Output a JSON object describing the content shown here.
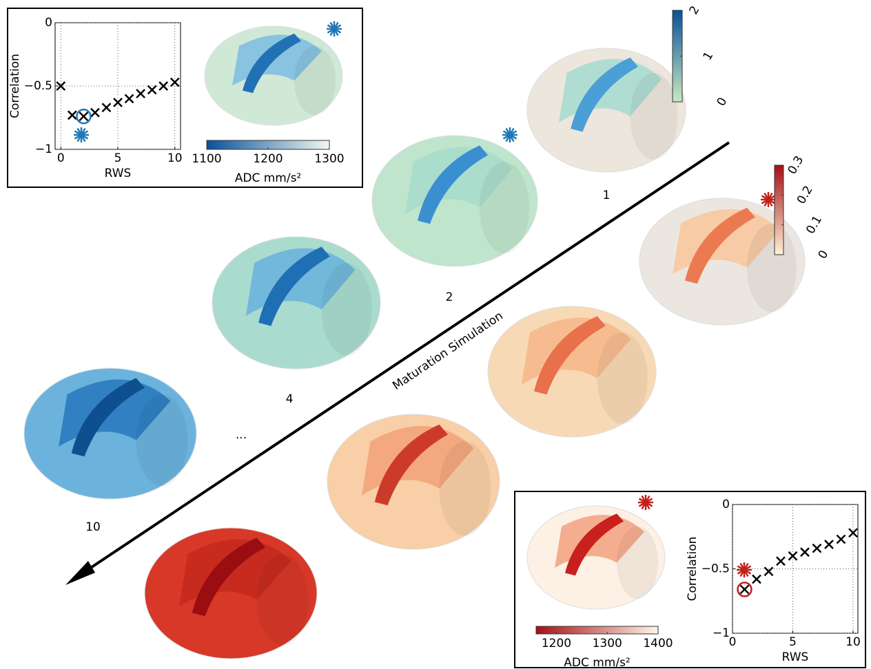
{
  "chart_data": [
    {
      "type": "scatter",
      "xlabel": "RWS",
      "ylabel": "Correlation",
      "marker": "x",
      "color": "#000000",
      "grid": true,
      "x": [
        0,
        1,
        2,
        3,
        4,
        5,
        6,
        7,
        8,
        9,
        10
      ],
      "values": [
        -0.5,
        -0.73,
        -0.74,
        -0.71,
        -0.67,
        -0.63,
        -0.6,
        -0.56,
        -0.53,
        -0.5,
        -0.47
      ],
      "xlim": [
        -0.5,
        10.5
      ],
      "ylim": [
        -1,
        0
      ],
      "xticks": [
        0,
        5,
        10
      ],
      "yticks": [
        {
          "value": 0,
          "label": "0"
        },
        {
          "value": -0.5,
          "label": "−0.5"
        },
        {
          "value": -1,
          "label": "−1"
        }
      ],
      "highlight": {
        "x": 2,
        "y": -0.74,
        "color": "#1f77b4"
      }
    },
    {
      "type": "scatter",
      "xlabel": "RWS",
      "ylabel": "Correlation",
      "marker": "x",
      "color": "#000000",
      "grid": true,
      "x": [
        1,
        2,
        3,
        4,
        5,
        6,
        7,
        8,
        9,
        10
      ],
      "values": [
        -0.66,
        -0.58,
        -0.52,
        -0.44,
        -0.4,
        -0.37,
        -0.34,
        -0.31,
        -0.27,
        -0.22
      ],
      "xlim": [
        0,
        10.4
      ],
      "ylim": [
        -1,
        0
      ],
      "xticks": [
        0,
        5,
        10
      ],
      "yticks": [
        {
          "value": 0,
          "label": "0"
        },
        {
          "value": -0.5,
          "label": "−0.5"
        },
        {
          "value": -1,
          "label": "−1"
        }
      ],
      "highlight": {
        "x": 1,
        "y": -0.66,
        "color": "#c0201a"
      }
    }
  ],
  "figure": {
    "colorbars": [
      {
        "label": "ADC mm/s²",
        "lim": [
          1100,
          1300
        ],
        "ticks": [
          1100,
          1200,
          1300
        ],
        "colors": [
          "#08519c",
          "#f2f7f0"
        ]
      },
      {
        "label": "ADC mm/s²",
        "lim": [
          1160,
          1400
        ],
        "ticks": [
          1200,
          1300,
          1400
        ],
        "colors": [
          "#a50f15",
          "#fff6e8"
        ]
      },
      {
        "lim": [
          0,
          2
        ],
        "ticks": [
          0,
          1,
          2
        ],
        "colors": [
          "#c7e9c0",
          "#08519c"
        ]
      },
      {
        "lim": [
          0,
          0.3
        ],
        "ticks": [
          0,
          0.1,
          0.2,
          0.3
        ],
        "colors": [
          "#fff2d6",
          "#a50f15"
        ]
      }
    ],
    "steps": [
      "1",
      "2",
      "4",
      "...",
      "10"
    ],
    "arrow_label": "Maturation Simulation"
  }
}
